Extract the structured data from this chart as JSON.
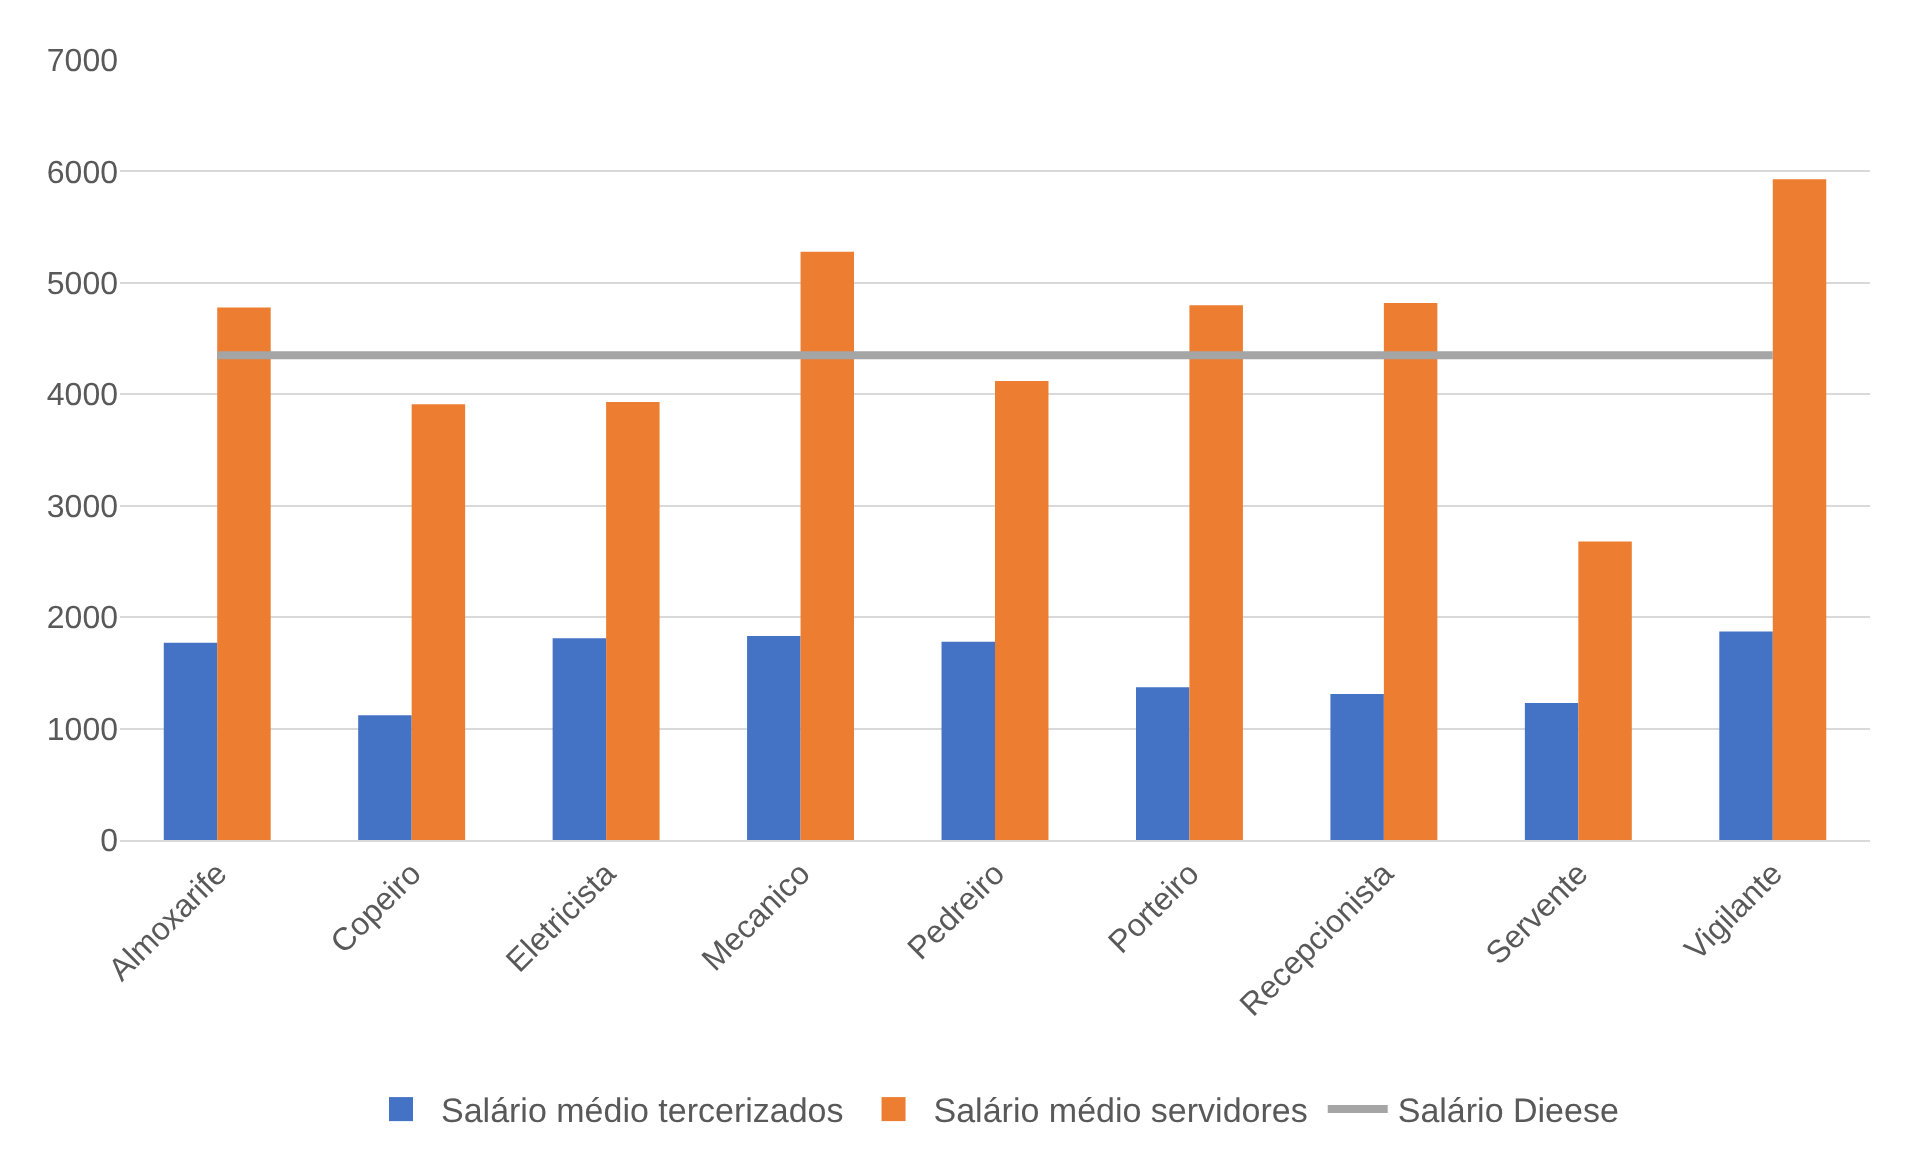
{
  "chart_data": {
    "type": "bar",
    "categories": [
      "Almoxarife",
      "Copeiro",
      "Eletricista",
      "Mecanico",
      "Pedreiro",
      "Porteiro",
      "Recepcionista",
      "Servente",
      "Vigilante"
    ],
    "series": [
      {
        "name": "Salário médio tercerizados",
        "color": "#4472c4",
        "values": [
          1770,
          1120,
          1810,
          1830,
          1780,
          1370,
          1310,
          1230,
          1870
        ]
      },
      {
        "name": "Salário médio servidores",
        "color": "#ed7d31",
        "values": [
          4780,
          3910,
          3930,
          5280,
          4120,
          4800,
          4820,
          2680,
          5930
        ]
      },
      {
        "name": "Salário Dieese",
        "color": "#a5a5a5",
        "type": "line",
        "values": [
          4350,
          4350,
          4350,
          4350,
          4350,
          4350,
          4350,
          4350,
          4350
        ]
      }
    ],
    "ylim": [
      0,
      7000
    ],
    "yticks": [
      0,
      1000,
      2000,
      3000,
      4000,
      5000,
      6000,
      7000
    ],
    "grid": "y",
    "legend": "bottom",
    "marker": "none"
  }
}
